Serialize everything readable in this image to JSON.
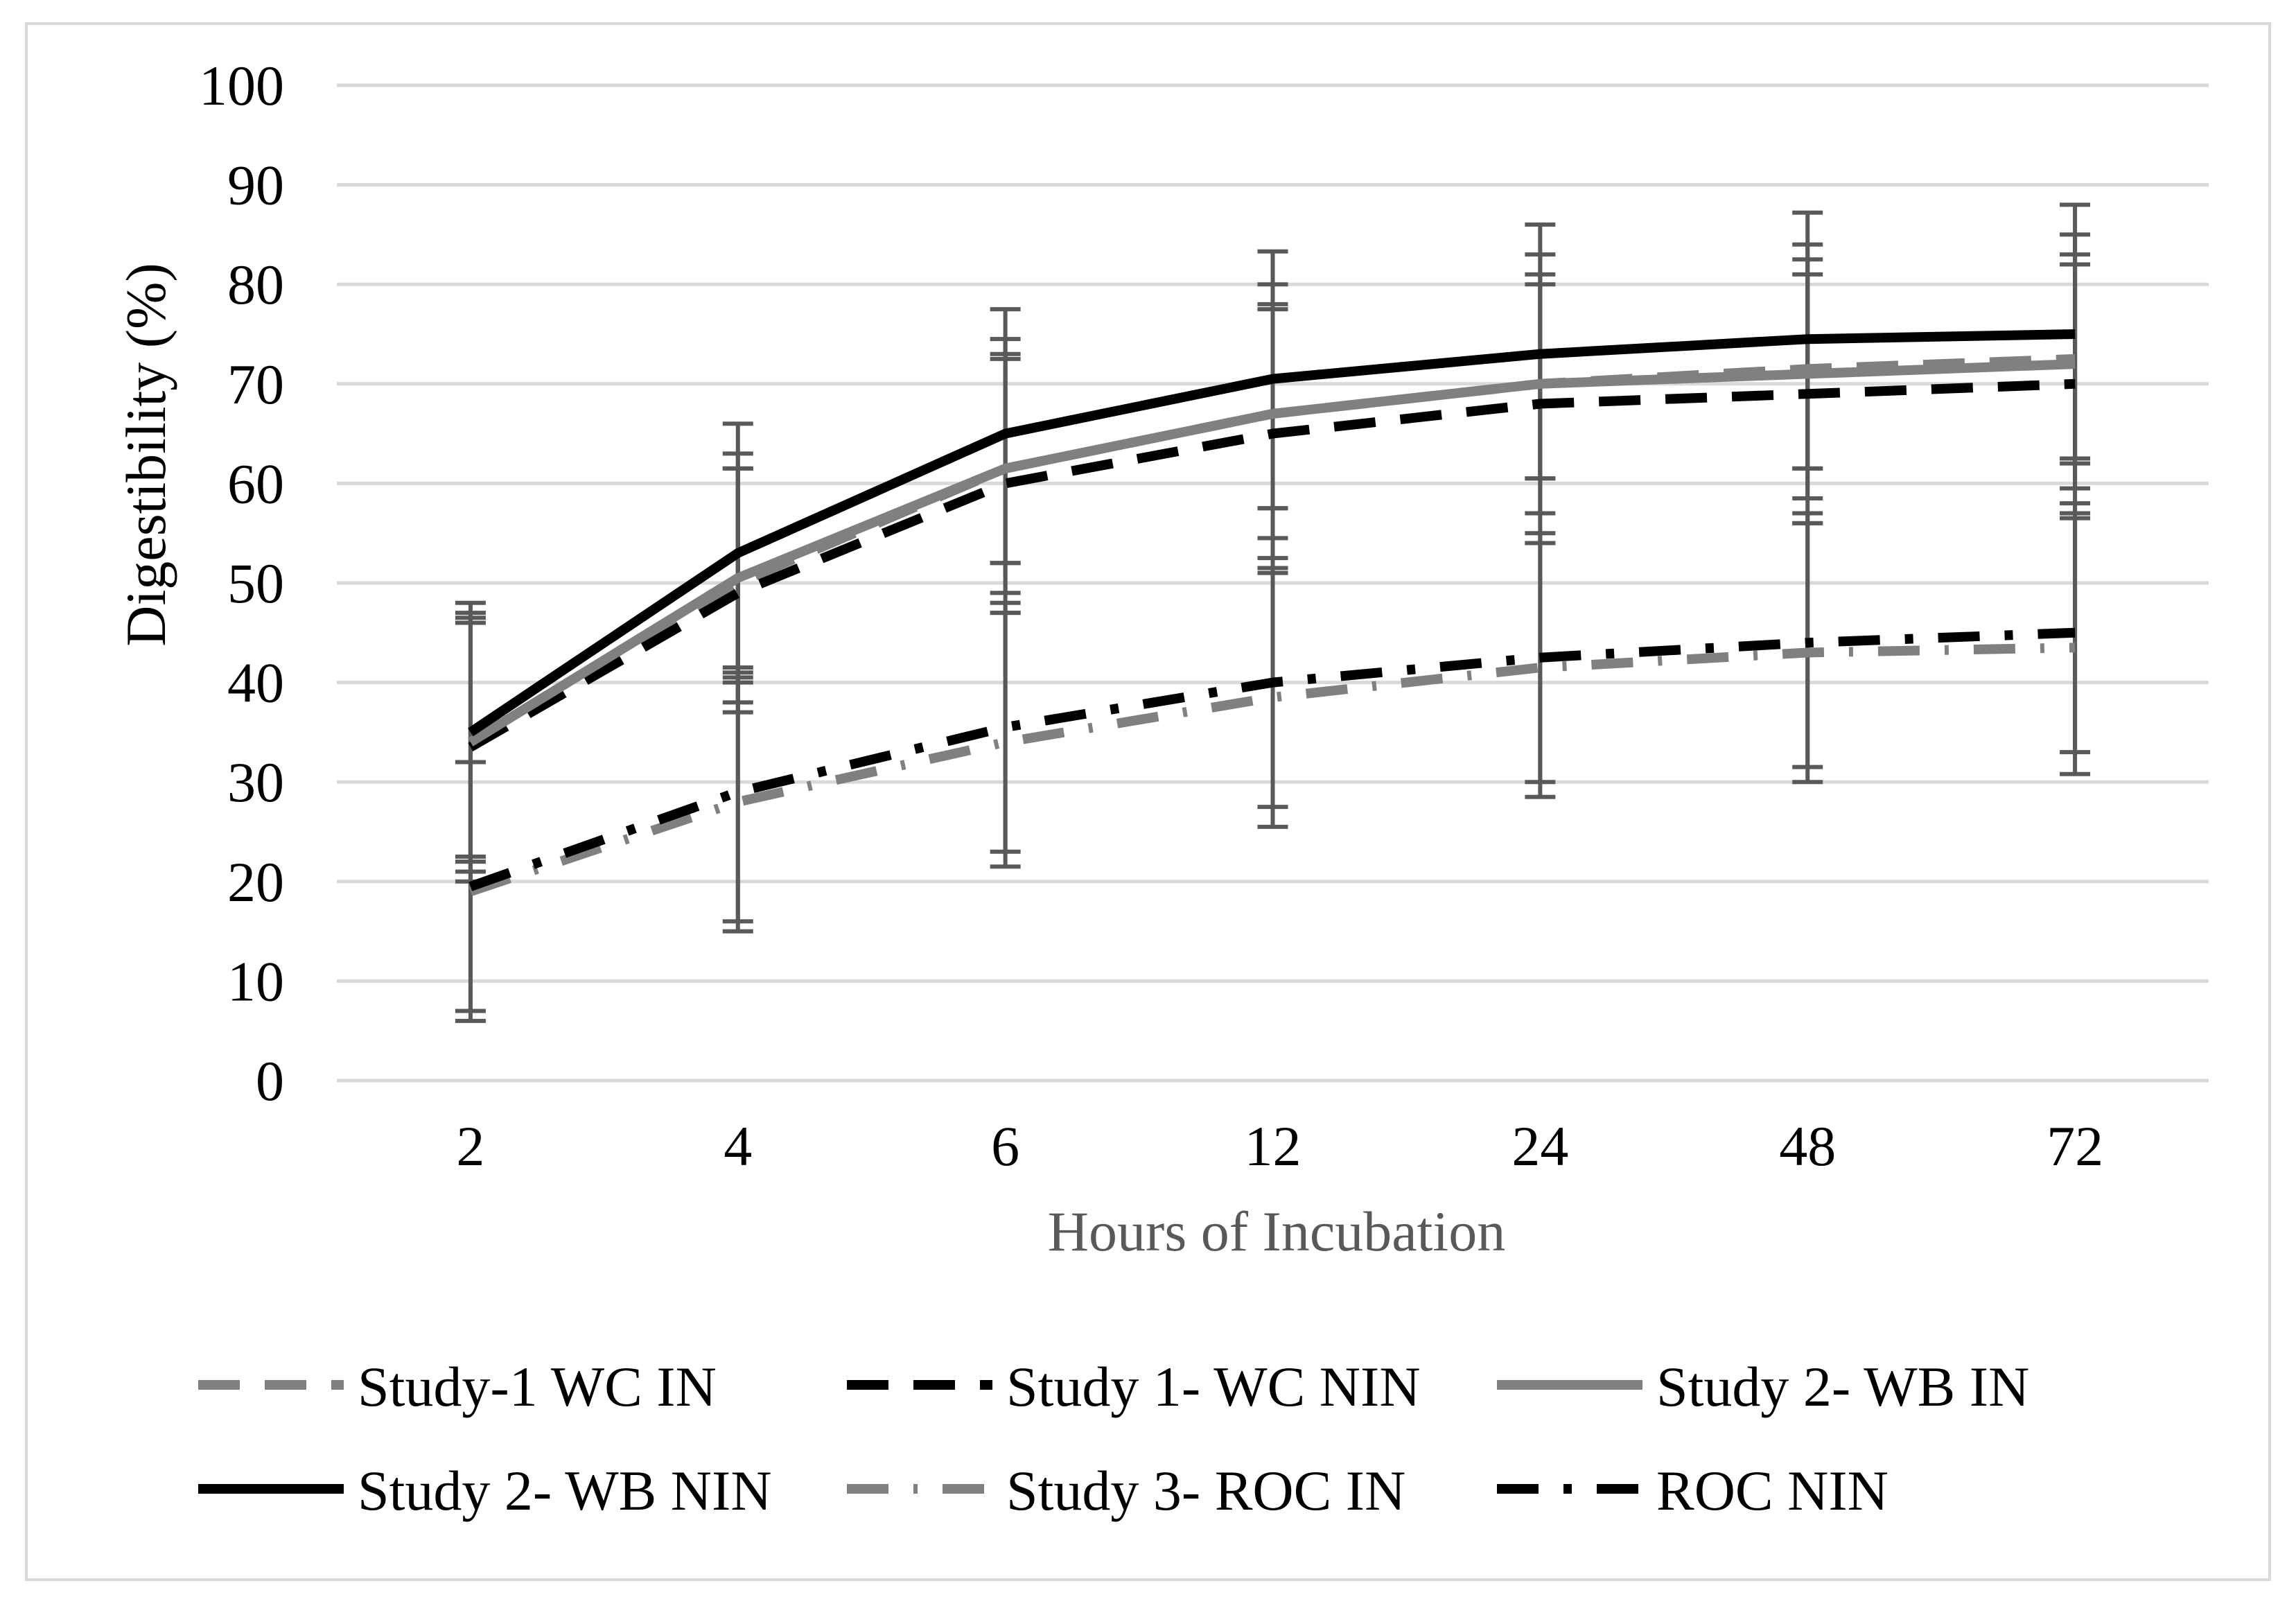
{
  "chart_data": {
    "type": "line",
    "title": "",
    "xlabel": "Hours of Incubation",
    "ylabel": "Digestibility (%)",
    "categories": [
      "2",
      "4",
      "6",
      "12",
      "24",
      "48",
      "72"
    ],
    "ylim": [
      0,
      100
    ],
    "yticks": [
      "0",
      "10",
      "20",
      "30",
      "40",
      "50",
      "60",
      "70",
      "80",
      "90",
      "100"
    ],
    "grid": true,
    "legend_position": "bottom",
    "series": [
      {
        "name": "Study-1 WC IN",
        "values": [
          33.5,
          50,
          61.5,
          67,
          70,
          71.5,
          72.5
        ],
        "color": "#808080",
        "dash": "dashed",
        "err_lo": [
          20,
          38,
          49,
          54.5,
          57,
          58.5,
          59.5
        ],
        "err_hi": [
          47,
          63,
          74.5,
          80,
          83,
          84,
          85
        ]
      },
      {
        "name": "Study 1- WC NIN",
        "values": [
          33.5,
          49,
          60,
          65,
          68,
          69,
          70
        ],
        "color": "#000000",
        "dash": "dashed",
        "err_lo": [
          21,
          37,
          47,
          51.5,
          54,
          56,
          57
        ],
        "err_hi": [
          46,
          61.5,
          73,
          78,
          81,
          82.5,
          83
        ]
      },
      {
        "name": "Study 2- WB IN",
        "values": [
          34,
          50.5,
          61.5,
          67,
          70,
          71,
          72
        ],
        "color": "#808080",
        "dash": "solid",
        "err_lo": [
          22,
          40.5,
          52,
          57.5,
          60.5,
          61.5,
          62.5
        ],
        "err_hi": [
          46.5,
          61.5,
          72.5,
          77.5,
          80,
          81,
          82
        ]
      },
      {
        "name": "Study 2- WB NIN",
        "values": [
          35,
          53,
          65,
          70.5,
          73,
          74.5,
          75
        ],
        "color": "#000000",
        "dash": "solid",
        "err_lo": [
          22.5,
          40,
          52,
          57.5,
          60.5,
          61.5,
          62
        ],
        "err_hi": [
          48,
          66,
          77.5,
          83.3,
          86,
          87.2,
          88
        ]
      },
      {
        "name": "Study 3- ROC IN",
        "values": [
          19,
          28,
          34,
          38.5,
          41.5,
          43,
          43.5
        ],
        "color": "#808080",
        "dash": "dot-dash",
        "err_lo": [
          6,
          15,
          21.5,
          25.5,
          28.5,
          30,
          30.8
        ],
        "err_hi": [
          32,
          41,
          47,
          51,
          54,
          56,
          56.5
        ]
      },
      {
        "name": "ROC NIN",
        "values": [
          19.5,
          29,
          35.5,
          40,
          42.5,
          44,
          45
        ],
        "color": "#000000",
        "dash": "dash-dot",
        "err_lo": [
          7,
          16,
          23,
          27.5,
          30,
          31.5,
          33
        ],
        "err_hi": [
          32,
          41.5,
          48,
          52.5,
          55,
          57,
          58
        ]
      }
    ]
  }
}
